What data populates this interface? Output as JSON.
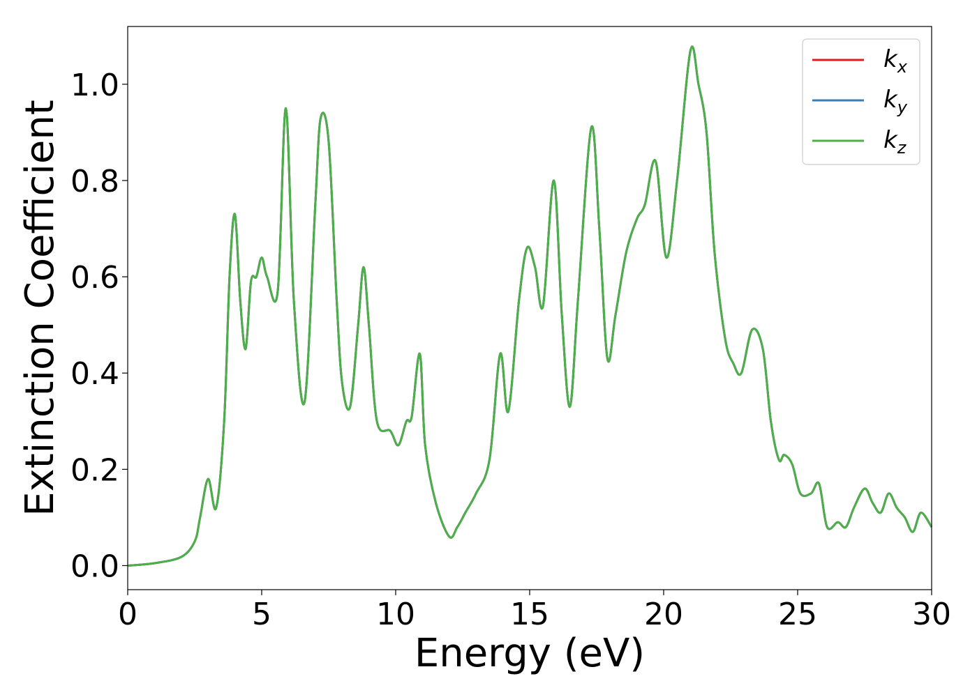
{
  "chart_data": {
    "type": "line",
    "xlabel": "Energy (eV)",
    "ylabel": "Extinction Coefficient",
    "xlim": [
      0,
      30
    ],
    "ylim": [
      -0.05,
      1.12
    ],
    "xticks": [
      "0",
      "5",
      "10",
      "15",
      "20",
      "25",
      "30"
    ],
    "yticks": [
      "0.0",
      "0.2",
      "0.4",
      "0.6",
      "0.8",
      "1.0"
    ],
    "grid": false,
    "legend_position": "top-right",
    "series": [
      {
        "name": "k",
        "subscript": "x",
        "color": "#e41a1c",
        "x": [
          0,
          1,
          2,
          2.5,
          2.7,
          3.0,
          3.3,
          3.6,
          3.8,
          4.0,
          4.2,
          4.4,
          4.6,
          4.8,
          5.0,
          5.2,
          5.6,
          5.9,
          6.2,
          6.6,
          7.0,
          7.2,
          7.5,
          7.8,
          8.0,
          8.3,
          8.6,
          8.8,
          9.0,
          9.3,
          9.8,
          10.1,
          10.4,
          10.6,
          10.9,
          11.1,
          11.5,
          12.0,
          12.3,
          12.6,
          13.0,
          13.5,
          13.9,
          14.2,
          14.6,
          14.9,
          15.2,
          15.5,
          15.9,
          16.2,
          16.5,
          16.8,
          17.3,
          17.6,
          17.9,
          18.2,
          18.6,
          19.0,
          19.3,
          19.7,
          20.1,
          20.5,
          21.0,
          21.3,
          21.6,
          21.9,
          22.3,
          22.6,
          22.9,
          23.3,
          23.7,
          24.0,
          24.3,
          24.5,
          24.8,
          25.1,
          25.5,
          25.8,
          26.1,
          26.5,
          26.8,
          27.1,
          27.5,
          27.8,
          28.1,
          28.4,
          28.7,
          29.0,
          29.3,
          29.6,
          30
        ],
        "y": [
          0.0,
          0.005,
          0.018,
          0.05,
          0.1,
          0.18,
          0.12,
          0.3,
          0.6,
          0.73,
          0.55,
          0.45,
          0.59,
          0.6,
          0.64,
          0.6,
          0.57,
          0.95,
          0.55,
          0.34,
          0.75,
          0.93,
          0.88,
          0.55,
          0.38,
          0.33,
          0.5,
          0.62,
          0.5,
          0.3,
          0.28,
          0.25,
          0.3,
          0.31,
          0.44,
          0.25,
          0.13,
          0.06,
          0.08,
          0.11,
          0.15,
          0.22,
          0.44,
          0.32,
          0.55,
          0.66,
          0.62,
          0.54,
          0.8,
          0.52,
          0.33,
          0.55,
          0.91,
          0.7,
          0.43,
          0.52,
          0.65,
          0.72,
          0.75,
          0.84,
          0.64,
          0.8,
          1.07,
          1.0,
          0.9,
          0.65,
          0.47,
          0.42,
          0.4,
          0.49,
          0.45,
          0.3,
          0.22,
          0.23,
          0.21,
          0.15,
          0.15,
          0.17,
          0.08,
          0.09,
          0.08,
          0.12,
          0.16,
          0.13,
          0.11,
          0.15,
          0.12,
          0.1,
          0.07,
          0.11,
          0.08
        ]
      },
      {
        "name": "k",
        "subscript": "y",
        "color": "#377eb8",
        "x": [
          0,
          1,
          2,
          2.5,
          2.7,
          3.0,
          3.3,
          3.6,
          3.8,
          4.0,
          4.2,
          4.4,
          4.6,
          4.8,
          5.0,
          5.2,
          5.6,
          5.9,
          6.2,
          6.6,
          7.0,
          7.2,
          7.5,
          7.8,
          8.0,
          8.3,
          8.6,
          8.8,
          9.0,
          9.3,
          9.8,
          10.1,
          10.4,
          10.6,
          10.9,
          11.1,
          11.5,
          12.0,
          12.3,
          12.6,
          13.0,
          13.5,
          13.9,
          14.2,
          14.6,
          14.9,
          15.2,
          15.5,
          15.9,
          16.2,
          16.5,
          16.8,
          17.3,
          17.6,
          17.9,
          18.2,
          18.6,
          19.0,
          19.3,
          19.7,
          20.1,
          20.5,
          21.0,
          21.3,
          21.6,
          21.9,
          22.3,
          22.6,
          22.9,
          23.3,
          23.7,
          24.0,
          24.3,
          24.5,
          24.8,
          25.1,
          25.5,
          25.8,
          26.1,
          26.5,
          26.8,
          27.1,
          27.5,
          27.8,
          28.1,
          28.4,
          28.7,
          29.0,
          29.3,
          29.6,
          30
        ],
        "y": [
          0.0,
          0.005,
          0.018,
          0.05,
          0.1,
          0.18,
          0.12,
          0.3,
          0.6,
          0.73,
          0.55,
          0.45,
          0.59,
          0.6,
          0.64,
          0.6,
          0.57,
          0.95,
          0.55,
          0.34,
          0.75,
          0.93,
          0.88,
          0.55,
          0.38,
          0.33,
          0.5,
          0.62,
          0.5,
          0.3,
          0.28,
          0.25,
          0.3,
          0.31,
          0.44,
          0.25,
          0.13,
          0.06,
          0.08,
          0.11,
          0.15,
          0.22,
          0.44,
          0.32,
          0.55,
          0.66,
          0.62,
          0.54,
          0.8,
          0.52,
          0.33,
          0.55,
          0.91,
          0.7,
          0.43,
          0.52,
          0.65,
          0.72,
          0.75,
          0.84,
          0.64,
          0.8,
          1.07,
          1.0,
          0.9,
          0.65,
          0.47,
          0.42,
          0.4,
          0.49,
          0.45,
          0.3,
          0.22,
          0.23,
          0.21,
          0.15,
          0.15,
          0.17,
          0.08,
          0.09,
          0.08,
          0.12,
          0.16,
          0.13,
          0.11,
          0.15,
          0.12,
          0.1,
          0.07,
          0.11,
          0.08
        ]
      },
      {
        "name": "k",
        "subscript": "z",
        "color": "#4daf4a",
        "x": [
          0,
          1,
          2,
          2.5,
          2.7,
          3.0,
          3.3,
          3.6,
          3.8,
          4.0,
          4.2,
          4.4,
          4.6,
          4.8,
          5.0,
          5.2,
          5.6,
          5.9,
          6.2,
          6.6,
          7.0,
          7.2,
          7.5,
          7.8,
          8.0,
          8.3,
          8.6,
          8.8,
          9.0,
          9.3,
          9.8,
          10.1,
          10.4,
          10.6,
          10.9,
          11.1,
          11.5,
          12.0,
          12.3,
          12.6,
          13.0,
          13.5,
          13.9,
          14.2,
          14.6,
          14.9,
          15.2,
          15.5,
          15.9,
          16.2,
          16.5,
          16.8,
          17.3,
          17.6,
          17.9,
          18.2,
          18.6,
          19.0,
          19.3,
          19.7,
          20.1,
          20.5,
          21.0,
          21.3,
          21.6,
          21.9,
          22.3,
          22.6,
          22.9,
          23.3,
          23.7,
          24.0,
          24.3,
          24.5,
          24.8,
          25.1,
          25.5,
          25.8,
          26.1,
          26.5,
          26.8,
          27.1,
          27.5,
          27.8,
          28.1,
          28.4,
          28.7,
          29.0,
          29.3,
          29.6,
          30
        ],
        "y": [
          0.0,
          0.005,
          0.018,
          0.05,
          0.1,
          0.18,
          0.12,
          0.3,
          0.6,
          0.73,
          0.55,
          0.45,
          0.59,
          0.6,
          0.64,
          0.6,
          0.57,
          0.95,
          0.55,
          0.34,
          0.75,
          0.93,
          0.88,
          0.55,
          0.38,
          0.33,
          0.5,
          0.62,
          0.5,
          0.3,
          0.28,
          0.25,
          0.3,
          0.31,
          0.44,
          0.25,
          0.13,
          0.06,
          0.08,
          0.11,
          0.15,
          0.22,
          0.44,
          0.32,
          0.55,
          0.66,
          0.62,
          0.54,
          0.8,
          0.52,
          0.33,
          0.55,
          0.91,
          0.7,
          0.43,
          0.52,
          0.65,
          0.72,
          0.75,
          0.84,
          0.64,
          0.8,
          1.07,
          1.0,
          0.9,
          0.65,
          0.47,
          0.42,
          0.4,
          0.49,
          0.45,
          0.3,
          0.22,
          0.23,
          0.21,
          0.15,
          0.15,
          0.17,
          0.08,
          0.09,
          0.08,
          0.12,
          0.16,
          0.13,
          0.11,
          0.15,
          0.12,
          0.1,
          0.07,
          0.11,
          0.08
        ]
      }
    ]
  }
}
